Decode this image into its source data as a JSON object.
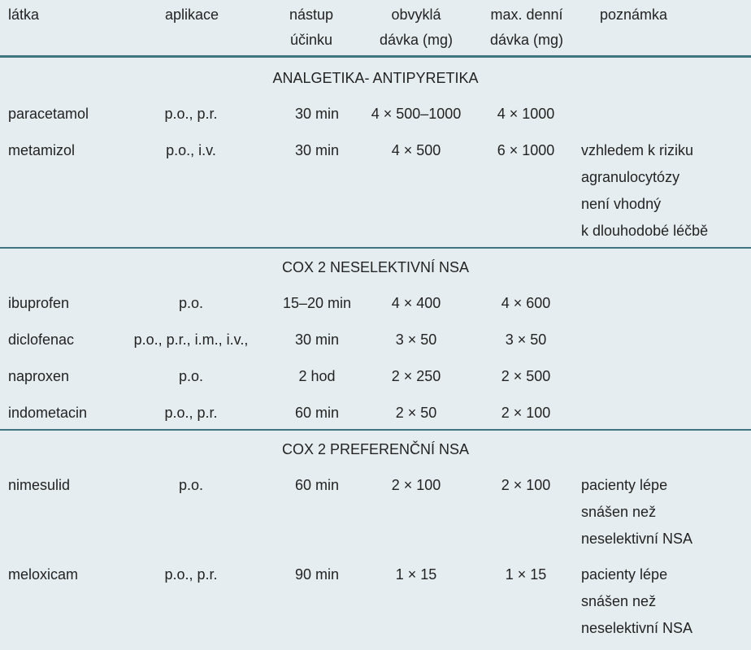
{
  "table": {
    "header": [
      [
        "látka"
      ],
      [
        "aplikace"
      ],
      [
        "nástup",
        "účinku"
      ],
      [
        "obvyklá",
        "dávka (mg)"
      ],
      [
        "max. denní",
        "dávka (mg)"
      ],
      [
        "poznámka"
      ]
    ],
    "sections": [
      {
        "title": "ANALGETIKA- ANTIPYRETIKA",
        "rows": [
          {
            "cells": [
              "paracetamol",
              "p.o., p.r.",
              "30 min",
              "4 × 500–1000",
              "4 × 1000"
            ]
          },
          {
            "cells": [
              "metamizol",
              "p.o., i.v.",
              "30 min",
              "4 × 500",
              "6 × 1000"
            ],
            "note": [
              "vzhledem k riziku",
              "agranulocytózy",
              "není vhodný",
              "k dlouhodobé léčbě"
            ]
          }
        ]
      },
      {
        "title": "COX 2 NESELEKTIVNÍ NSA",
        "rows": [
          {
            "cells": [
              "ibuprofen",
              "p.o.",
              "15–20 min",
              "4 × 400",
              "4 × 600"
            ]
          },
          {
            "cells": [
              "diclofenac",
              "p.o., p.r., i.m., i.v.,",
              "30 min",
              "3 × 50",
              "3 × 50"
            ]
          },
          {
            "cells": [
              "naproxen",
              "p.o.",
              "2 hod",
              "2 × 250",
              "2 × 500"
            ]
          },
          {
            "cells": [
              "indometacin",
              "p.o., p.r.",
              "60 min",
              "2 × 50",
              "2 × 100"
            ]
          }
        ]
      },
      {
        "title": "COX 2 PREFERENČNÍ NSA",
        "rows": [
          {
            "cells": [
              "nimesulid",
              "p.o.",
              "60 min",
              "2 × 100",
              "2 × 100"
            ],
            "note": [
              "pacienty lépe",
              "snášen než",
              "neselektivní NSA"
            ]
          },
          {
            "cells": [
              "meloxicam",
              "p.o., p.r.",
              "90 min",
              "1 × 15",
              "1 × 15"
            ],
            "note": [
              "pacienty lépe",
              "snášen než",
              "neselektivní NSA"
            ]
          }
        ]
      }
    ]
  }
}
